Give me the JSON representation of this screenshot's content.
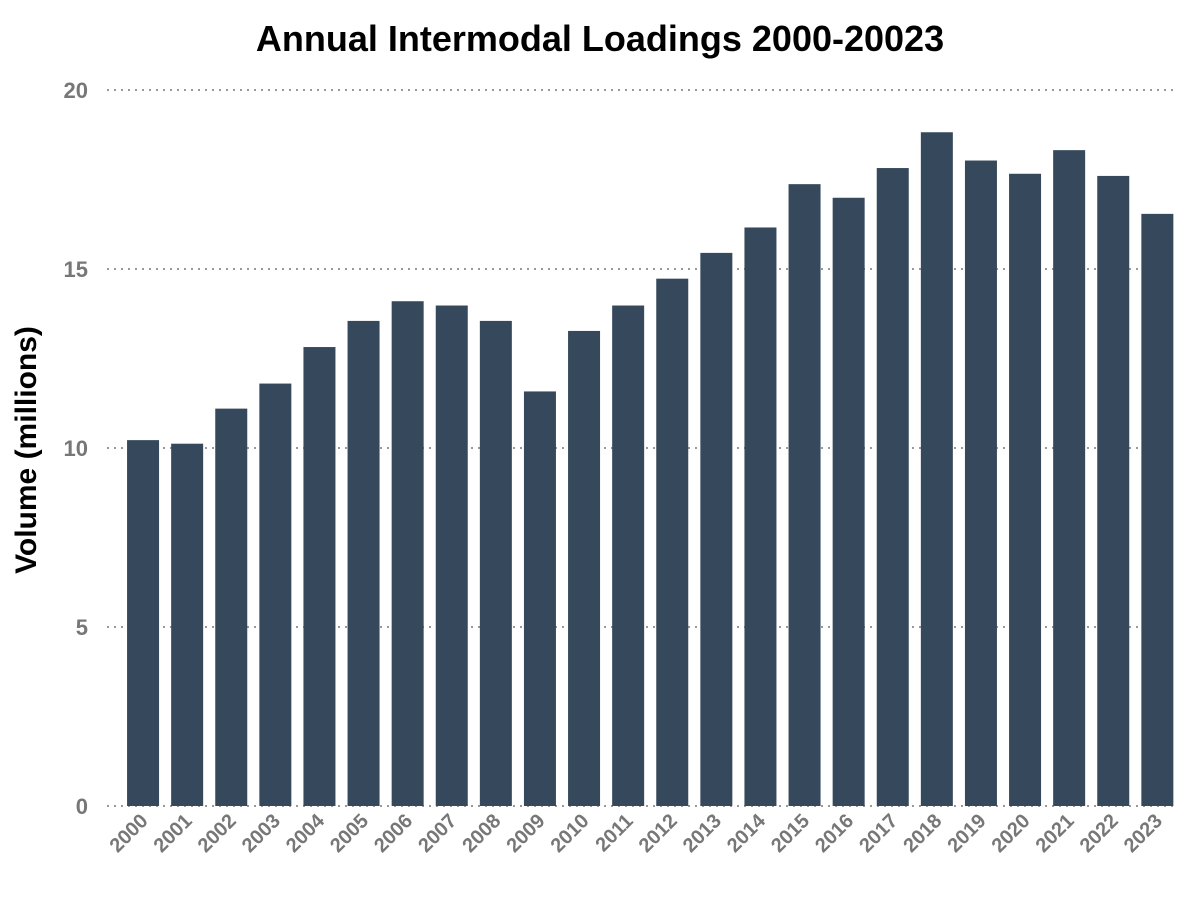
{
  "chart_data": {
    "type": "bar",
    "title": "Annual Intermodal Loadings 2000-20023",
    "xlabel": "",
    "ylabel": "Volume (millions)",
    "ylim": [
      0,
      20
    ],
    "yticks": [
      "0",
      "5",
      "10",
      "15",
      "20"
    ],
    "categories": [
      "2000",
      "2001",
      "2002",
      "2003",
      "2004",
      "2005",
      "2006",
      "2007",
      "2008",
      "2009",
      "2010",
      "2011",
      "2012",
      "2013",
      "2014",
      "2015",
      "2016",
      "2017",
      "2018",
      "2019",
      "2020",
      "2021",
      "2022",
      "2023"
    ],
    "values": [
      10.22,
      10.12,
      11.1,
      11.8,
      12.82,
      13.55,
      14.1,
      13.98,
      13.55,
      11.58,
      13.27,
      13.98,
      14.73,
      15.45,
      16.16,
      17.37,
      16.99,
      17.82,
      18.82,
      18.03,
      17.66,
      18.32,
      17.6,
      16.54
    ],
    "grid": "dotted horizontal",
    "bar_color": "#36495c",
    "grid_color": "#999999",
    "tick_color": "#777777"
  }
}
